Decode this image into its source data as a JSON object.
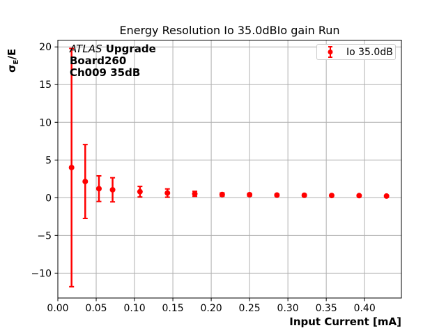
{
  "title": "Energy Resolution Io 35.0dBIo gain Run",
  "annotation": {
    "experiment": "ATLAS",
    "experiment_suffix": " Upgrade",
    "board": "Board260",
    "channel": "Ch009 35dB"
  },
  "legend": {
    "entries": [
      {
        "label": "Io 35.0dB",
        "color": "#ff0000"
      }
    ]
  },
  "axes": {
    "x_label": "Input Current [mA]",
    "y_label": "σE/E",
    "y_label_sigma": "σ",
    "y_label_sub": "E",
    "y_label_rest": "/E"
  },
  "chart_data": {
    "type": "scatter",
    "title": "Energy Resolution Io 35.0dBIo gain Run",
    "xlabel": "Input Current [mA]",
    "ylabel": "σE/E",
    "xlim": [
      0,
      0.448
    ],
    "ylim": [
      -13.3,
      20.9
    ],
    "x_ticks": [
      0.0,
      0.05,
      0.1,
      0.15,
      0.2,
      0.25,
      0.3,
      0.35,
      0.4
    ],
    "x_tick_labels": [
      "0.00",
      "0.05",
      "0.10",
      "0.15",
      "0.20",
      "0.25",
      "0.30",
      "0.35",
      "0.40"
    ],
    "y_ticks": [
      -10,
      -5,
      0,
      5,
      10,
      15,
      20
    ],
    "y_tick_labels": [
      "−10",
      "−5",
      "0",
      "5",
      "10",
      "15",
      "20"
    ],
    "grid": true,
    "grid_color": "#b0b0b0",
    "spine_color": "#000000",
    "legend_position": "upper right",
    "series": [
      {
        "name": "Io 35.0dB",
        "color": "#ff0000",
        "marker": "o",
        "x": [
          0.0179,
          0.0357,
          0.0536,
          0.0714,
          0.1071,
          0.1429,
          0.1786,
          0.2143,
          0.25,
          0.2857,
          0.3214,
          0.3571,
          0.3929,
          0.4286
        ],
        "y": [
          4.0,
          2.15,
          1.2,
          1.05,
          0.8,
          0.62,
          0.52,
          0.42,
          0.4,
          0.35,
          0.33,
          0.3,
          0.28,
          0.22
        ],
        "yerr": [
          15.8,
          4.9,
          1.7,
          1.6,
          0.7,
          0.55,
          0.33,
          0.22,
          0.18,
          0.14,
          0.12,
          0.1,
          0.09,
          0.08
        ]
      }
    ]
  }
}
